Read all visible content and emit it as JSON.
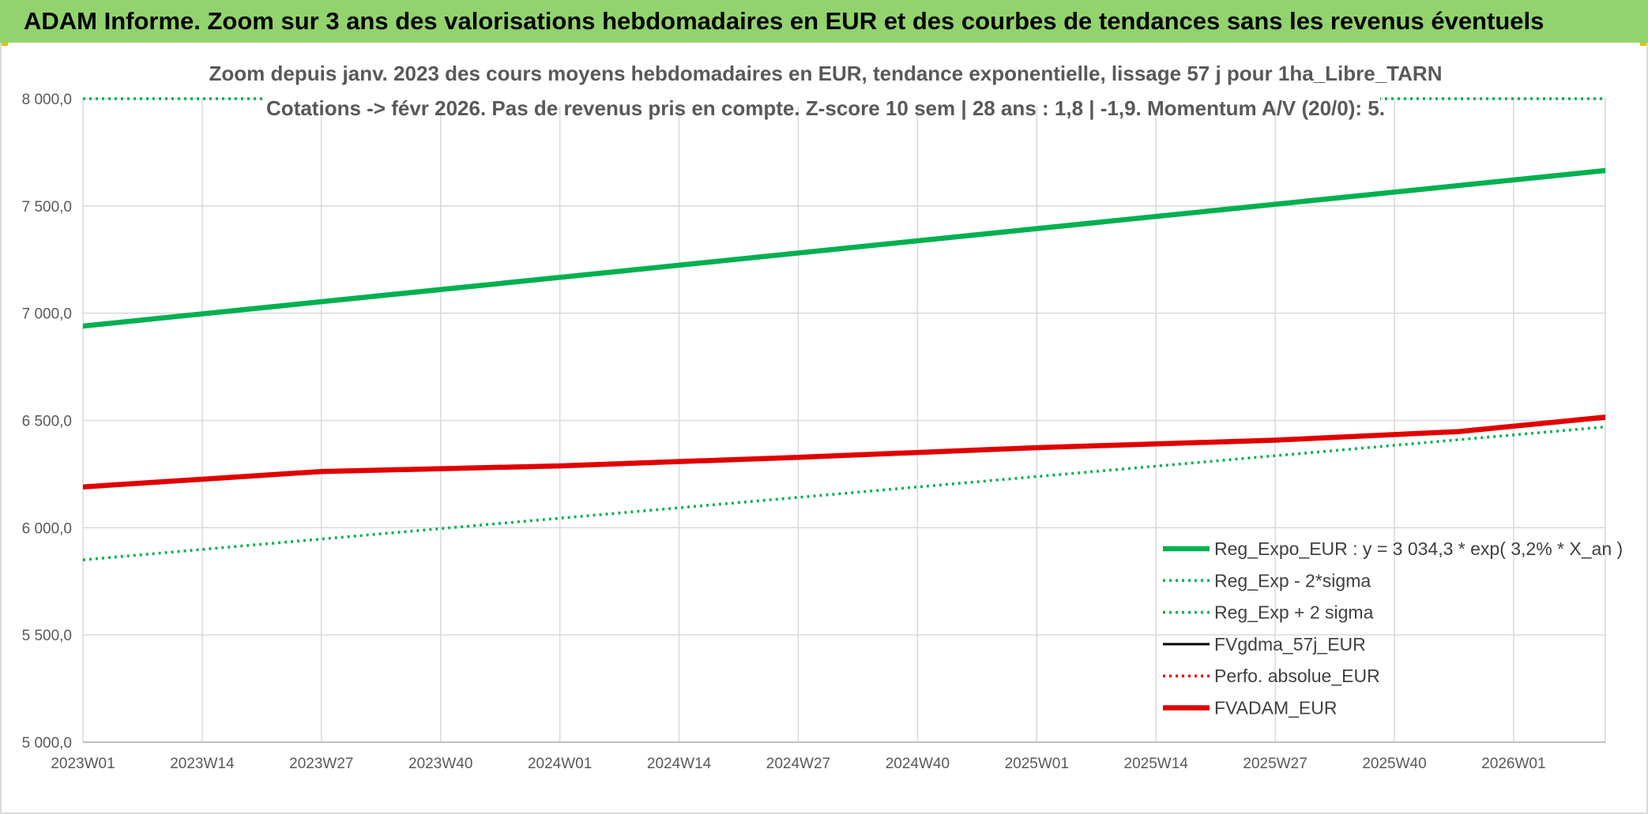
{
  "banner": {
    "title": "ADAM Informe. Zoom sur 3 ans des valorisations hebdomadaires en EUR et des courbes de tendances sans les revenus éventuels"
  },
  "chart_data": {
    "type": "line",
    "title": "Zoom depuis janv. 2023 des cours moyens hebdomadaires en EUR, tendance exponentielle, lissage 57 j pour 1ha_Libre_TARN",
    "subtitle": "Cotations -> févr 2026. Pas de revenus pris en compte. Z-score 10 sem | 28 ans : 1,8 | -1,9. Momentum A/V (20/0): 5.",
    "xlabel": "",
    "ylabel": "",
    "x_tick_labels": [
      "2023W01",
      "2023W14",
      "2023W27",
      "2023W40",
      "2024W01",
      "2024W14",
      "2024W27",
      "2024W40",
      "2025W01",
      "2025W14",
      "2025W27",
      "2025W40",
      "2026W01"
    ],
    "x_range": [
      0,
      166
    ],
    "x_unit": "weeks since 2023W01",
    "ylim": [
      5000,
      8000
    ],
    "y_ticks": [
      5000,
      5500,
      6000,
      6500,
      7000,
      7500,
      8000
    ],
    "y_tick_labels": [
      "5 000,0",
      "5 500,0",
      "6 000,0",
      "6 500,0",
      "7 000,0",
      "7 500,0",
      "8 000,0"
    ],
    "grid": true,
    "legend_position": "bottom-right",
    "series": [
      {
        "name": "Reg_Expo_EUR : y = 3 034,3 * exp( 3,2% *  X_an )",
        "color": "#00b050",
        "style": "solid-thick",
        "x": [
          0,
          166
        ],
        "y": [
          6940,
          7665
        ]
      },
      {
        "name": "Reg_Exp - 2*sigma",
        "color": "#00b050",
        "style": "dotted",
        "x": [
          0,
          166
        ],
        "y": [
          5850,
          6470
        ]
      },
      {
        "name": "Reg_Exp + 2 sigma",
        "color": "#00b050",
        "style": "dotted",
        "x": [
          0,
          166
        ],
        "y": [
          8000,
          8000
        ]
      },
      {
        "name": "FVgdma_57j_EUR",
        "color": "#000000",
        "style": "solid",
        "x": [
          0,
          26,
          52,
          78,
          104,
          130,
          150,
          166
        ],
        "y": [
          6190,
          6262,
          6288,
          6328,
          6373,
          6408,
          6448,
          6508
        ]
      },
      {
        "name": "Perfo. absolue_EUR",
        "color": "#e00000",
        "style": "dotted",
        "x": [
          0,
          26,
          52,
          78,
          104,
          130,
          150,
          166
        ],
        "y": [
          6190,
          6262,
          6288,
          6328,
          6373,
          6408,
          6448,
          6512
        ]
      },
      {
        "name": "FVADAM_EUR",
        "color": "#e00000",
        "style": "solid-thick",
        "x": [
          0,
          26,
          52,
          78,
          104,
          130,
          150,
          166
        ],
        "y": [
          6190,
          6262,
          6288,
          6328,
          6373,
          6408,
          6448,
          6515
        ]
      }
    ]
  }
}
